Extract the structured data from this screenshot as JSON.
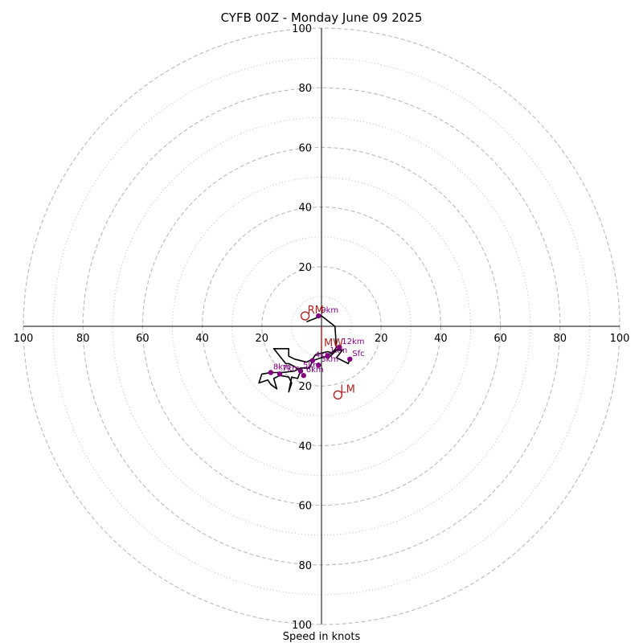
{
  "chart_data": {
    "type": "line",
    "title": "CYFB 00Z - Monday June 09 2025",
    "xlabel": "Speed in knots",
    "ylabel": "",
    "range": [
      -100,
      100
    ],
    "rings_dashed": [
      20,
      40,
      60,
      80,
      100
    ],
    "rings_dotted": [
      10,
      30,
      50,
      70,
      90
    ],
    "ticks": [
      {
        "value": 20,
        "label": "20"
      },
      {
        "value": 40,
        "label": "40"
      },
      {
        "value": 60,
        "label": "60"
      },
      {
        "value": 80,
        "label": "80"
      },
      {
        "value": 100,
        "label": "100"
      }
    ],
    "hodograph": [
      [
        9.5,
        -11
      ],
      [
        9,
        -12.5
      ],
      [
        5,
        -10.5
      ],
      [
        7,
        -8
      ],
      [
        4.5,
        -8
      ],
      [
        3,
        -9
      ],
      [
        2,
        -10
      ],
      [
        0,
        -10.5
      ],
      [
        -3,
        -11.5
      ],
      [
        -4,
        -14
      ],
      [
        -7,
        -14
      ],
      [
        -9,
        -15
      ],
      [
        -13,
        -15.5
      ],
      [
        -17,
        -15.5
      ],
      [
        -20,
        -16
      ],
      [
        -21,
        -19
      ],
      [
        -18,
        -18
      ],
      [
        -17,
        -19.5
      ],
      [
        -15,
        -21
      ],
      [
        -16,
        -17.5
      ],
      [
        -14,
        -16.5
      ],
      [
        -11,
        -17
      ],
      [
        -10,
        -19
      ],
      [
        -11,
        -22
      ],
      [
        -10,
        -17
      ],
      [
        -8,
        -17.5
      ],
      [
        -7,
        -15
      ],
      [
        -9,
        -13.5
      ],
      [
        -11,
        -12.5
      ],
      [
        -12,
        -12.5
      ],
      [
        -16,
        -7.5
      ],
      [
        -15,
        -7.5
      ],
      [
        -11,
        -7.5
      ],
      [
        -11,
        -10
      ],
      [
        -9,
        -11
      ],
      [
        -7,
        -11.5
      ],
      [
        -5,
        -12
      ],
      [
        -3,
        -11
      ],
      [
        -2,
        -9.5
      ],
      [
        0,
        -9
      ],
      [
        2,
        -8.5
      ],
      [
        4,
        -9
      ],
      [
        6,
        -7
      ],
      [
        5,
        -8
      ],
      [
        3,
        -10
      ],
      [
        5,
        -7
      ],
      [
        4.5,
        0
      ],
      [
        0,
        3.5
      ],
      [
        -5,
        1.5
      ]
    ],
    "height_points": [
      {
        "label": "Sfc",
        "x": 9.5,
        "y": -11
      },
      {
        "label": "12km",
        "x": 6,
        "y": -7
      },
      {
        "label": "1km",
        "x": 2,
        "y": -10
      },
      {
        "label": "4km",
        "x": -3,
        "y": -11.5
      },
      {
        "label": "3km",
        "x": -1,
        "y": -13
      },
      {
        "label": "5km",
        "x": -7,
        "y": -15
      },
      {
        "label": "6km",
        "x": -6,
        "y": -16.5
      },
      {
        "label": "8km",
        "x": -17,
        "y": -15.5
      },
      {
        "label": "7km",
        "x": -14,
        "y": -16
      },
      {
        "label": "9km",
        "x": -1,
        "y": 3.5
      }
    ],
    "markers": [
      {
        "label": "RM",
        "x": -5.5,
        "y": 3.5
      },
      {
        "label": "LM",
        "x": 5.5,
        "y": -23
      },
      {
        "label": "MW",
        "x": 0,
        "y": -7.5
      }
    ],
    "shear_vector": [
      [
        0,
        0
      ],
      [
        0,
        -8.5
      ]
    ],
    "colors": {
      "ring": "#bfbfbf",
      "hodograph": "#000000",
      "points": "#800080",
      "markers": "#b22222"
    }
  }
}
